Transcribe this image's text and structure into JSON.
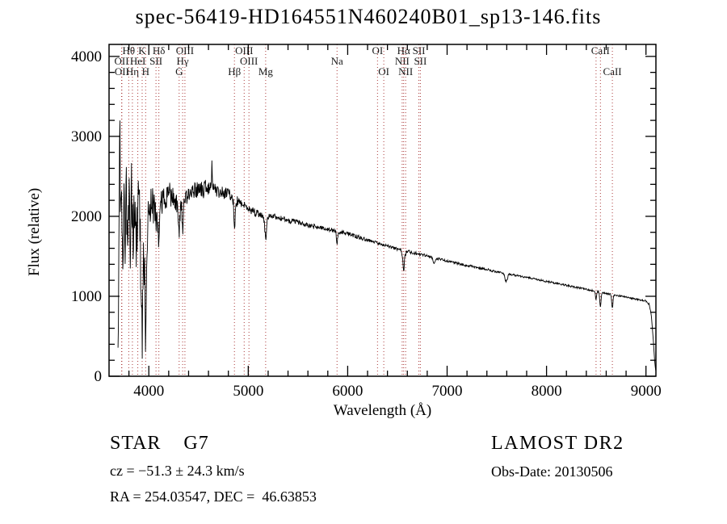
{
  "footer": {
    "object_class": "STAR    G7",
    "survey": "LAMOST DR2",
    "cz": "cz = −51.3 ± 24.3 km/s",
    "obs_date": "Obs-Date: 20130506",
    "coords": "RA = 254.03547, DEC =  46.63853"
  },
  "chart_data": {
    "type": "line",
    "title": "spec-56419-HD164551N460240B01_sp13-146.fits",
    "xlabel": "Wavelength (Å)",
    "ylabel": "Flux (relative)",
    "xlim": [
      3600,
      9100
    ],
    "ylim": [
      0,
      4150
    ],
    "xticks": [
      4000,
      5000,
      6000,
      7000,
      8000,
      9000
    ],
    "yticks": [
      0,
      1000,
      2000,
      3000,
      4000
    ],
    "x_minor_step": 200,
    "y_minor_step": 200,
    "axis_color": "#000000",
    "line_color": "#000000",
    "marker_line_color": "#aa3939",
    "marker_label_color": "#1a1a1a",
    "spectral_lines": [
      {
        "wavelength": 3726,
        "label": "OII",
        "row": 1
      },
      {
        "wavelength": 3729,
        "label": "OII",
        "row": 2
      },
      {
        "wavelength": 3798,
        "label": "Hθ",
        "row": 0
      },
      {
        "wavelength": 3835,
        "label": "Hη",
        "row": 2
      },
      {
        "wavelength": 3889,
        "label": "HeI",
        "row": 1
      },
      {
        "wavelength": 3933,
        "label": "K",
        "row": 0
      },
      {
        "wavelength": 3968,
        "label": "H",
        "row": 2
      },
      {
        "wavelength": 4072,
        "label": "SII",
        "row": 1
      },
      {
        "wavelength": 4101,
        "label": "Hδ",
        "row": 0
      },
      {
        "wavelength": 4305,
        "label": "G",
        "row": 2
      },
      {
        "wavelength": 4340,
        "label": "Hγ",
        "row": 1
      },
      {
        "wavelength": 4363,
        "label": "OIII",
        "row": 0
      },
      {
        "wavelength": 4861,
        "label": "Hβ",
        "row": 2
      },
      {
        "wavelength": 4959,
        "label": "OIII",
        "row": 0
      },
      {
        "wavelength": 5007,
        "label": "OIII",
        "row": 1
      },
      {
        "wavelength": 5175,
        "label": "Mg",
        "row": 2
      },
      {
        "wavelength": 5893,
        "label": "Na",
        "row": 1
      },
      {
        "wavelength": 6300,
        "label": "OI",
        "row": 0
      },
      {
        "wavelength": 6363,
        "label": "OI",
        "row": 2
      },
      {
        "wavelength": 6548,
        "label": "NII",
        "row": 1
      },
      {
        "wavelength": 6563,
        "label": "Hα",
        "row": 0
      },
      {
        "wavelength": 6583,
        "label": "NII",
        "row": 2
      },
      {
        "wavelength": 6716,
        "label": "SII",
        "row": 0
      },
      {
        "wavelength": 6731,
        "label": "SII",
        "row": 1
      },
      {
        "wavelength": 8498,
        "label": "",
        "row": 0
      },
      {
        "wavelength": 8542,
        "label": "CaII",
        "row": 0
      },
      {
        "wavelength": 8662,
        "label": "CaII",
        "row": 2
      }
    ],
    "spectrum": {
      "start": 3690,
      "end": 9100,
      "step": 4,
      "seed": 20130506,
      "continuum": [
        [
          3690,
          120
        ],
        [
          3700,
          2300
        ],
        [
          3708,
          3320
        ],
        [
          3716,
          1500
        ],
        [
          3726,
          2750
        ],
        [
          3736,
          1250
        ],
        [
          3748,
          2500
        ],
        [
          3760,
          1600
        ],
        [
          3772,
          2450
        ],
        [
          3785,
          1500
        ],
        [
          3798,
          2250
        ],
        [
          3812,
          1600
        ],
        [
          3826,
          2350
        ],
        [
          3840,
          1650
        ],
        [
          3856,
          2250
        ],
        [
          3872,
          1500
        ],
        [
          3888,
          2150
        ],
        [
          3904,
          2250
        ],
        [
          3920,
          1350
        ],
        [
          3933,
          850
        ],
        [
          3946,
          1800
        ],
        [
          3958,
          1250
        ],
        [
          3968,
          950
        ],
        [
          3982,
          1900
        ],
        [
          4000,
          2100
        ],
        [
          4030,
          2180
        ],
        [
          4060,
          2050
        ],
        [
          4090,
          1980
        ],
        [
          4120,
          2150
        ],
        [
          4160,
          2240
        ],
        [
          4200,
          2260
        ],
        [
          4250,
          2210
        ],
        [
          4300,
          2130
        ],
        [
          4350,
          2200
        ],
        [
          4400,
          2300
        ],
        [
          4450,
          2330
        ],
        [
          4500,
          2310
        ],
        [
          4550,
          2330
        ],
        [
          4600,
          2360
        ],
        [
          4650,
          2340
        ],
        [
          4700,
          2310
        ],
        [
          4760,
          2290
        ],
        [
          4820,
          2260
        ],
        [
          4880,
          2200
        ],
        [
          4940,
          2150
        ],
        [
          5000,
          2100
        ],
        [
          5060,
          2050
        ],
        [
          5120,
          2020
        ],
        [
          5180,
          1995
        ],
        [
          5250,
          2005
        ],
        [
          5330,
          1975
        ],
        [
          5420,
          1945
        ],
        [
          5510,
          1915
        ],
        [
          5600,
          1885
        ],
        [
          5700,
          1862
        ],
        [
          5800,
          1840
        ],
        [
          5900,
          1812
        ],
        [
          6000,
          1782
        ],
        [
          6100,
          1745
        ],
        [
          6200,
          1705
        ],
        [
          6300,
          1665
        ],
        [
          6400,
          1625
        ],
        [
          6500,
          1592
        ],
        [
          6600,
          1562
        ],
        [
          6700,
          1532
        ],
        [
          6800,
          1502
        ],
        [
          6900,
          1472
        ],
        [
          7000,
          1442
        ],
        [
          7100,
          1412
        ],
        [
          7200,
          1386
        ],
        [
          7300,
          1360
        ],
        [
          7400,
          1335
        ],
        [
          7500,
          1306
        ],
        [
          7600,
          1282
        ],
        [
          7700,
          1260
        ],
        [
          7800,
          1236
        ],
        [
          7900,
          1212
        ],
        [
          8000,
          1186
        ],
        [
          8100,
          1161
        ],
        [
          8200,
          1136
        ],
        [
          8300,
          1111
        ],
        [
          8400,
          1086
        ],
        [
          8500,
          1061
        ],
        [
          8600,
          1036
        ],
        [
          8700,
          1011
        ],
        [
          8800,
          990
        ],
        [
          8900,
          966
        ],
        [
          9000,
          941
        ],
        [
          9030,
          905
        ],
        [
          9055,
          760
        ],
        [
          9075,
          420
        ],
        [
          9090,
          150
        ],
        [
          9100,
          60
        ]
      ],
      "noise_segments": [
        [
          3690,
          3770,
          480
        ],
        [
          3770,
          3900,
          420
        ],
        [
          3900,
          3995,
          370
        ],
        [
          3995,
          4080,
          230
        ],
        [
          4080,
          4250,
          150
        ],
        [
          4250,
          4600,
          110
        ],
        [
          4600,
          4900,
          80
        ],
        [
          4900,
          5200,
          50
        ],
        [
          5200,
          5700,
          35
        ],
        [
          5700,
          6200,
          26
        ],
        [
          6200,
          6800,
          20
        ],
        [
          6800,
          7500,
          15
        ],
        [
          7500,
          8400,
          12
        ],
        [
          8400,
          9101,
          11
        ]
      ],
      "absorption_lines": [
        [
          3933,
          500,
          6
        ],
        [
          3968,
          450,
          6
        ],
        [
          4101,
          420,
          5
        ],
        [
          4305,
          300,
          7
        ],
        [
          4340,
          360,
          5
        ],
        [
          4861,
          370,
          6
        ],
        [
          5175,
          280,
          9
        ],
        [
          5893,
          150,
          6
        ],
        [
          6563,
          270,
          6
        ],
        [
          6548,
          60,
          4
        ],
        [
          6583,
          60,
          4
        ],
        [
          6870,
          70,
          10
        ],
        [
          7594,
          100,
          12
        ],
        [
          8498,
          110,
          5
        ],
        [
          8542,
          190,
          6
        ],
        [
          8662,
          170,
          6
        ]
      ],
      "emission_spikes": [
        [
          4634,
          300,
          3
        ],
        [
          4214,
          200,
          3
        ]
      ]
    }
  }
}
